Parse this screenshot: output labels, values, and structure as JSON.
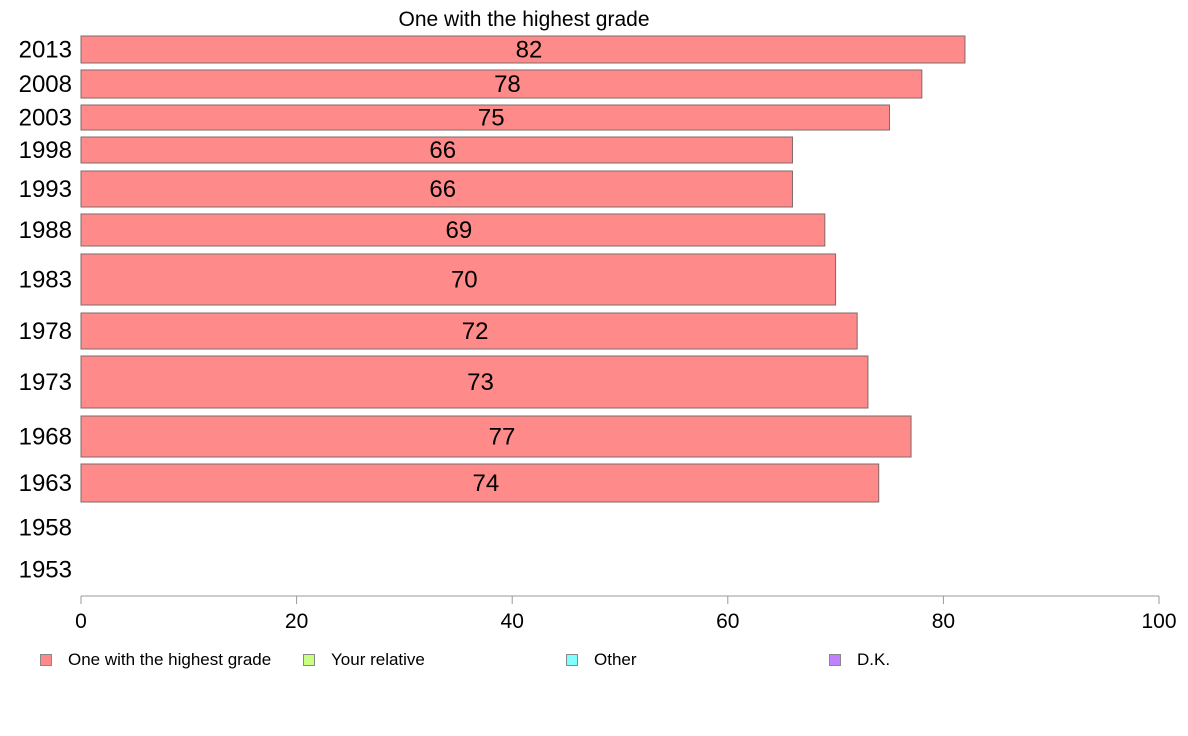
{
  "chart_data": {
    "type": "bar",
    "orientation": "horizontal",
    "title": "One with the highest grade",
    "categories": [
      "2013",
      "2008",
      "2003",
      "1998",
      "1993",
      "1988",
      "1983",
      "1978",
      "1973",
      "1968",
      "1963",
      "1958",
      "1953"
    ],
    "series": [
      {
        "name": "One with the highest grade",
        "color": "#ff8a8a",
        "values": [
          82,
          78,
          75,
          66,
          66,
          69,
          70,
          72,
          73,
          77,
          74,
          null,
          null
        ],
        "labels": [
          "82",
          "78",
          "75",
          "66",
          "66",
          "69",
          "70",
          "72",
          "73",
          "77",
          "74",
          "",
          ""
        ]
      }
    ],
    "xlim": [
      0,
      100
    ],
    "xticks": [
      0,
      20,
      40,
      60,
      80,
      100
    ],
    "grid": false,
    "legend": {
      "position": "bottom",
      "items": [
        {
          "name": "One with the highest grade",
          "color": "#ff8a8a"
        },
        {
          "name": "Your relative",
          "color": "#c8ff80"
        },
        {
          "name": "Other",
          "color": "#80ffff"
        },
        {
          "name": "D.K.",
          "color": "#c080ff"
        }
      ]
    }
  }
}
